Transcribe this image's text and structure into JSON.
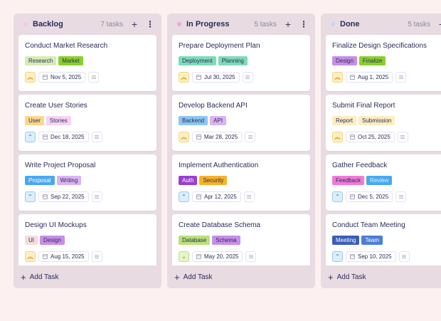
{
  "columns": [
    {
      "title": "Backlog",
      "count": "7 tasks",
      "dot_color": "#f5c6ec",
      "add_task_label": "Add Task",
      "cards": [
        {
          "title": "Conduct Market Research",
          "tags": [
            {
              "label": "Research",
              "bg": "#d5ecb4"
            },
            {
              "label": "Market",
              "bg": "#8ad02a"
            }
          ],
          "priority": "high",
          "priority_icon": "«",
          "date": "Nov 5, 2025"
        },
        {
          "title": "Create User Stories",
          "tags": [
            {
              "label": "User",
              "bg": "#fbd78a"
            },
            {
              "label": "Stories",
              "bg": "#f8d2f2"
            }
          ],
          "priority": "medium",
          "priority_icon": "^",
          "date": "Dec 18, 2025"
        },
        {
          "title": "Write Project Proposal",
          "tags": [
            {
              "label": "Proposal",
              "bg": "#4aa8f0",
              "fg": "#ffffff"
            },
            {
              "label": "Writing",
              "bg": "#dbb2f2"
            }
          ],
          "priority": "medium",
          "priority_icon": "^",
          "date": "Sep 22, 2025"
        },
        {
          "title": "Design UI Mockups",
          "tags": [
            {
              "label": "UI",
              "bg": "#f4dcdc"
            },
            {
              "label": "Design",
              "bg": "#c88ee8"
            }
          ],
          "priority": "high",
          "priority_icon": "«",
          "date": "Aug 15, 2025"
        }
      ]
    },
    {
      "title": "In Progress",
      "count": "5 tasks",
      "dot_color": "#f5a3e4",
      "add_task_label": "Add Task",
      "cards": [
        {
          "title": "Prepare Deployment Plan",
          "tags": [
            {
              "label": "Deployment",
              "bg": "#7ddcb8"
            },
            {
              "label": "Planning",
              "bg": "#7ddcb8"
            }
          ],
          "priority": "high",
          "priority_icon": "«",
          "date": "Jul 30, 2025"
        },
        {
          "title": "Develop Backend API",
          "tags": [
            {
              "label": "Backend",
              "bg": "#8cc6f2"
            },
            {
              "label": "API",
              "bg": "#dbb2f2"
            }
          ],
          "priority": "high",
          "priority_icon": "«",
          "date": "Mar 28, 2025"
        },
        {
          "title": "Implement Authentication",
          "tags": [
            {
              "label": "Auth",
              "bg": "#9a3fd0",
              "fg": "#ffffff"
            },
            {
              "label": "Security",
              "bg": "#f7b228"
            }
          ],
          "priority": "medium",
          "priority_icon": "^",
          "date": "Apr 12, 2025"
        },
        {
          "title": "Create Database Schema",
          "tags": [
            {
              "label": "Database",
              "bg": "#b9e27a"
            },
            {
              "label": "Schema",
              "bg": "#c88ee8"
            }
          ],
          "priority": "low",
          "priority_icon": "v",
          "date": "May 20, 2025"
        }
      ]
    },
    {
      "title": "Done",
      "count": "5 tasks",
      "dot_color": "#c9d6f2",
      "add_task_label": "Add Task",
      "cards": [
        {
          "title": "Finalize Design Specifications",
          "tags": [
            {
              "label": "Design",
              "bg": "#c88ee8"
            },
            {
              "label": "Finalize",
              "bg": "#8ad02a"
            }
          ],
          "priority": "high",
          "priority_icon": "«",
          "date": "Aug 1, 2025"
        },
        {
          "title": "Submit Final Report",
          "tags": [
            {
              "label": "Report",
              "bg": "#fdedc0"
            },
            {
              "label": "Submission",
              "bg": "#fdedc0"
            }
          ],
          "priority": "high",
          "priority_icon": "«",
          "date": "Oct 25, 2025"
        },
        {
          "title": "Gather Feedback",
          "tags": [
            {
              "label": "Feedback",
              "bg": "#f07ad8"
            },
            {
              "label": "Review",
              "bg": "#4aa8f0",
              "fg": "#dceeff"
            }
          ],
          "priority": "medium",
          "priority_icon": "^",
          "date": "Dec 5, 2025"
        },
        {
          "title": "Conduct Team Meeting",
          "tags": [
            {
              "label": "Meeting",
              "bg": "#3a5eb8",
              "fg": "#ffffff"
            },
            {
              "label": "Team",
              "bg": "#4a7ed8",
              "fg": "#ffffff"
            }
          ],
          "priority": "medium",
          "priority_icon": "^",
          "date": "Sep 10, 2025"
        }
      ]
    }
  ],
  "icons": {
    "add": "+",
    "more": "⋮"
  }
}
